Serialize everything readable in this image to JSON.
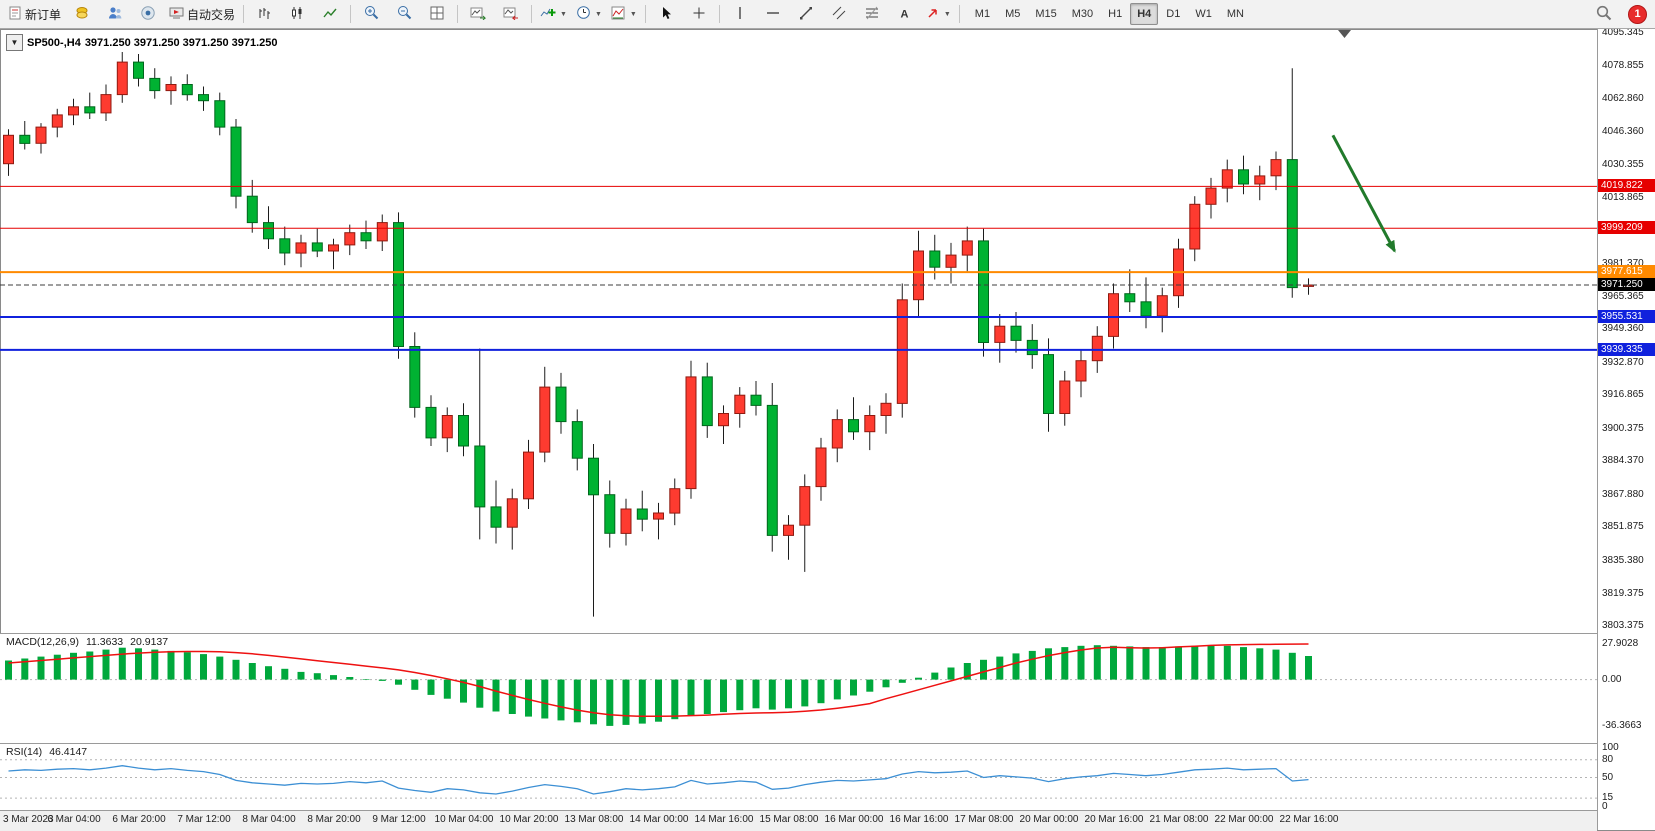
{
  "toolbar": {
    "new_order_label": "新订单",
    "autotrading_label": "自动交易",
    "timeframes": [
      "M1",
      "M5",
      "M15",
      "M30",
      "H1",
      "H4",
      "D1",
      "W1",
      "MN"
    ],
    "active_timeframe": "H4",
    "notification_count": "1"
  },
  "chart": {
    "symbol_period": "SP500-,H4",
    "ohlc_line": "3971.250 3971.250 3971.250 3971.250",
    "price_axis": [
      "4095.345",
      "4078.855",
      "4062.860",
      "4046.360",
      "4030.355",
      "4013.865",
      "3997.865",
      "3981.370",
      "3965.365",
      "3949.360",
      "3932.870",
      "3916.865",
      "3900.375",
      "3884.370",
      "3867.880",
      "3851.875",
      "3835.380",
      "3819.375",
      "3803.375"
    ],
    "levels": [
      {
        "label": "4019.822",
        "price": 4019.822,
        "color": "#e60000",
        "thickness": 1
      },
      {
        "label": "3999.209",
        "price": 3999.209,
        "color": "#e60000",
        "thickness": 1
      },
      {
        "label": "3977.615",
        "price": 3977.615,
        "color": "#ff8a00",
        "thickness": 2
      },
      {
        "label": "3955.531",
        "price": 3955.531,
        "color": "#1021dd",
        "thickness": 2
      },
      {
        "label": "3939.335",
        "price": 3939.335,
        "color": "#1021dd",
        "thickness": 2
      }
    ],
    "current_price": {
      "label": "3971.250",
      "price": 3971.25,
      "color": "#000000"
    },
    "annotation_arrow": {
      "color": "#217a2b",
      "from_bar": 81.5,
      "from_price": 4045,
      "to_bar": 85.3,
      "to_price": 3988
    },
    "candle_colors": {
      "up_fill": "#fe3b30",
      "up_stroke": "#8f1a10",
      "down_fill": "#00b232",
      "down_stroke": "#00661c",
      "wick": "#1c1c1c"
    },
    "candles": [
      [
        4031,
        4048,
        4025,
        4045
      ],
      [
        4045,
        4052,
        4038,
        4041
      ],
      [
        4041,
        4051,
        4036,
        4049
      ],
      [
        4049,
        4058,
        4044,
        4055
      ],
      [
        4055,
        4063,
        4050,
        4059
      ],
      [
        4059,
        4066,
        4053,
        4056
      ],
      [
        4056,
        4070,
        4052,
        4065
      ],
      [
        4065,
        4086,
        4061,
        4081
      ],
      [
        4081,
        4085,
        4069,
        4073
      ],
      [
        4073,
        4078,
        4063,
        4067
      ],
      [
        4067,
        4074,
        4060,
        4070
      ],
      [
        4070,
        4075,
        4062,
        4065
      ],
      [
        4065,
        4069,
        4057,
        4062
      ],
      [
        4062,
        4066,
        4045,
        4049
      ],
      [
        4049,
        4053,
        4009,
        4015
      ],
      [
        4015,
        4023,
        3997,
        4002
      ],
      [
        4002,
        4010,
        3989,
        3994
      ],
      [
        3994,
        4000,
        3981,
        3987
      ],
      [
        3987,
        3996,
        3980,
        3992
      ],
      [
        3992,
        3999,
        3985,
        3988
      ],
      [
        3988,
        3994,
        3979,
        3991
      ],
      [
        3991,
        4001,
        3986,
        3997
      ],
      [
        3997,
        4003,
        3989,
        3993
      ],
      [
        3993,
        4006,
        3988,
        4002
      ],
      [
        4002,
        4007,
        3935,
        3941
      ],
      [
        3941,
        3948,
        3906,
        3911
      ],
      [
        3911,
        3917,
        3892,
        3896
      ],
      [
        3896,
        3911,
        3889,
        3907
      ],
      [
        3907,
        3913,
        3887,
        3892
      ],
      [
        3892,
        3940,
        3846,
        3862
      ],
      [
        3862,
        3875,
        3844,
        3852
      ],
      [
        3852,
        3871,
        3841,
        3866
      ],
      [
        3866,
        3895,
        3861,
        3889
      ],
      [
        3889,
        3931,
        3884,
        3921
      ],
      [
        3921,
        3928,
        3898,
        3904
      ],
      [
        3904,
        3910,
        3880,
        3886
      ],
      [
        3886,
        3893,
        3808,
        3868
      ],
      [
        3868,
        3875,
        3842,
        3849
      ],
      [
        3849,
        3866,
        3843,
        3861
      ],
      [
        3861,
        3870,
        3850,
        3856
      ],
      [
        3856,
        3864,
        3846,
        3859
      ],
      [
        3859,
        3876,
        3853,
        3871
      ],
      [
        3871,
        3934,
        3866,
        3926
      ],
      [
        3926,
        3933,
        3896,
        3902
      ],
      [
        3902,
        3912,
        3893,
        3908
      ],
      [
        3908,
        3921,
        3901,
        3917
      ],
      [
        3917,
        3924,
        3907,
        3912
      ],
      [
        3912,
        3923,
        3840,
        3848
      ],
      [
        3848,
        3858,
        3836,
        3853
      ],
      [
        3853,
        3878,
        3830,
        3872
      ],
      [
        3872,
        3896,
        3865,
        3891
      ],
      [
        3891,
        3910,
        3884,
        3905
      ],
      [
        3905,
        3916,
        3895,
        3899
      ],
      [
        3899,
        3912,
        3890,
        3907
      ],
      [
        3907,
        3918,
        3898,
        3913
      ],
      [
        3913,
        3972,
        3906,
        3964
      ],
      [
        3964,
        3998,
        3956,
        3988
      ],
      [
        3988,
        3996,
        3974,
        3980
      ],
      [
        3980,
        3992,
        3972,
        3986
      ],
      [
        3986,
        4000,
        3978,
        3993
      ],
      [
        3993,
        3999,
        3936,
        3943
      ],
      [
        3943,
        3957,
        3933,
        3951
      ],
      [
        3951,
        3958,
        3938,
        3944
      ],
      [
        3944,
        3952,
        3930,
        3937
      ],
      [
        3937,
        3945,
        3899,
        3908
      ],
      [
        3908,
        3929,
        3902,
        3924
      ],
      [
        3924,
        3939,
        3916,
        3934
      ],
      [
        3934,
        3951,
        3928,
        3946
      ],
      [
        3946,
        3972,
        3940,
        3967
      ],
      [
        3967,
        3979,
        3958,
        3963
      ],
      [
        3963,
        3975,
        3950,
        3956
      ],
      [
        3956,
        3970,
        3948,
        3966
      ],
      [
        3966,
        3994,
        3960,
        3989
      ],
      [
        3989,
        4015,
        3983,
        4011
      ],
      [
        4011,
        4024,
        4004,
        4019
      ],
      [
        4019,
        4033,
        4012,
        4028
      ],
      [
        4028,
        4035,
        4016,
        4021
      ],
      [
        4021,
        4030,
        4013,
        4025
      ],
      [
        4025,
        4037,
        4018,
        4033
      ],
      [
        4033,
        4078,
        3965,
        3970
      ],
      [
        3971.25,
        3974.5,
        3966.5,
        3971.25
      ]
    ]
  },
  "indicators": {
    "macd": {
      "label": "MACD(12,26,9)",
      "value_main": "11.3633",
      "value_signal": "20.9137",
      "axis_labels": [
        "27.9028",
        "0.00",
        "-36.3663"
      ],
      "histogram_color": "#00a83c",
      "signal_color": "#ee1111",
      "histogram": [
        15,
        16.5,
        18,
        19.5,
        21,
        22,
        23.5,
        25,
        24.5,
        23.5,
        22.5,
        21.5,
        20,
        18,
        15.5,
        13,
        10.5,
        8.5,
        6,
        5,
        3.5,
        2,
        0.5,
        -1,
        -4,
        -8,
        -12,
        -15,
        -18,
        -22,
        -25,
        -27,
        -29,
        -30.5,
        -32,
        -33.5,
        -35,
        -36.3,
        -35.5,
        -34.5,
        -33,
        -31,
        -28.5,
        -27,
        -25.5,
        -24,
        -22.5,
        -23.5,
        -22.5,
        -21,
        -18.5,
        -15.5,
        -12.5,
        -9.5,
        -6,
        -2.5,
        1.5,
        5.5,
        9.5,
        13,
        15.5,
        18,
        20.5,
        22.5,
        24.5,
        25.5,
        26.5,
        27,
        26.5,
        26,
        25.5,
        25.5,
        26,
        26.5,
        27,
        26.5,
        25.5,
        24.5,
        23.5,
        21,
        18.5
      ],
      "signal": [
        13,
        14,
        15,
        16,
        17,
        18,
        19,
        20,
        20.8,
        21.4,
        21.8,
        22,
        22,
        21.8,
        21.2,
        20.2,
        19,
        17.6,
        16.2,
        14.8,
        13.4,
        12,
        10.6,
        9.2,
        7.6,
        5.6,
        3.2,
        0.6,
        -2.2,
        -5.4,
        -9,
        -12.4,
        -15.6,
        -18.6,
        -21.4,
        -23.9,
        -26,
        -27.5,
        -28.4,
        -28.8,
        -28.8,
        -28.6,
        -28.2,
        -27.8,
        -27.2,
        -26.6,
        -26.2,
        -26,
        -25.6,
        -24.8,
        -23.8,
        -22.4,
        -20.8,
        -18.8,
        -15,
        -11.5,
        -8,
        -4.5,
        -1,
        2.5,
        6,
        9.5,
        13,
        16,
        18.8,
        21.2,
        23.2,
        24.8,
        25.4,
        25,
        24.8,
        25,
        25.6,
        26.2,
        26.8,
        27.2,
        27.4,
        27.6,
        27.7,
        27.8,
        27.9
      ]
    },
    "rsi": {
      "label": "RSI(14)",
      "value": "46.4147",
      "axis_labels": [
        "100",
        "80",
        "50",
        "15",
        "0"
      ],
      "levels": [
        80,
        50,
        15
      ],
      "line_color": "#3c8fd4",
      "values": [
        61,
        63,
        62,
        64,
        65,
        63,
        66,
        70,
        66,
        63,
        65,
        62,
        60,
        55,
        45,
        41,
        39,
        37,
        40,
        39,
        40,
        43,
        41,
        44,
        32,
        28,
        25,
        31,
        29,
        24,
        22,
        27,
        33,
        38,
        35,
        31,
        22,
        26,
        31,
        29,
        31,
        34,
        45,
        39,
        41,
        44,
        42,
        30,
        32,
        38,
        42,
        45,
        44,
        46,
        48,
        56,
        60,
        58,
        59,
        61,
        50,
        53,
        51,
        49,
        43,
        48,
        51,
        53,
        57,
        55,
        53,
        55,
        59,
        63,
        64,
        66,
        63,
        64,
        65,
        44,
        46.41
      ]
    }
  },
  "time_axis": {
    "bars_per_label": 4,
    "labels": [
      "3 Mar 2023",
      "6 Mar 04:00",
      "6 Mar 20:00",
      "7 Mar 12:00",
      "8 Mar 04:00",
      "8 Mar 20:00",
      "9 Mar 12:00",
      "10 Mar 04:00",
      "10 Mar 20:00",
      "13 Mar 08:00",
      "14 Mar 00:00",
      "14 Mar 16:00",
      "15 Mar 08:00",
      "16 Mar 00:00",
      "16 Mar 16:00",
      "17 Mar 08:00",
      "20 Mar 00:00",
      "20 Mar 16:00",
      "21 Mar 08:00",
      "22 Mar 00:00",
      "22 Mar 16:00"
    ]
  }
}
